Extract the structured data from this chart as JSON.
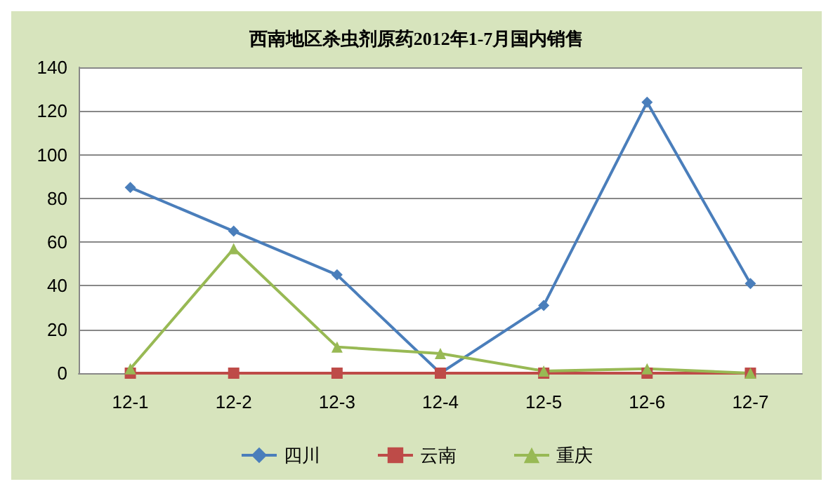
{
  "chart_data": {
    "type": "line",
    "title": "西南地区杀虫剂原药2012年1-7月国内销售",
    "categories": [
      "12-1",
      "12-2",
      "12-3",
      "12-4",
      "12-5",
      "12-6",
      "12-7"
    ],
    "series": [
      {
        "name": "四川",
        "color": "#4a7ebb",
        "marker": "diamond",
        "values": [
          85,
          65,
          45,
          0,
          31,
          124,
          41
        ]
      },
      {
        "name": "云南",
        "color": "#be4b48",
        "marker": "square",
        "values": [
          0,
          0,
          0,
          0,
          0,
          0,
          0
        ]
      },
      {
        "name": "重庆",
        "color": "#98b954",
        "marker": "triangle",
        "values": [
          2,
          57,
          12,
          9,
          1,
          2,
          0
        ]
      }
    ],
    "ylim": [
      0,
      140
    ],
    "yticks": [
      0,
      20,
      40,
      60,
      80,
      100,
      120,
      140
    ],
    "grid": "y",
    "legend": "bottom",
    "line_style": "solid"
  }
}
